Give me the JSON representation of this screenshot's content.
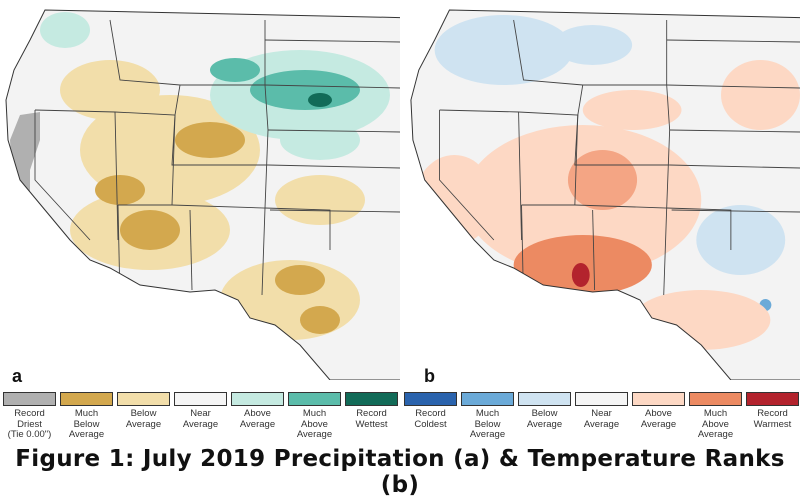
{
  "panel_a": {
    "letter": "a",
    "categories": [
      {
        "label": "Record\nDriest\n(Tie 0.00\")",
        "color": "#b0b0b0"
      },
      {
        "label": "Much\nBelow\nAverage",
        "color": "#d3a84e"
      },
      {
        "label": "Below\nAverage",
        "color": "#f2deaa"
      },
      {
        "label": "Near\nAverage",
        "color": "#f5f5f5"
      },
      {
        "label": "Above\nAverage",
        "color": "#c5eae1"
      },
      {
        "label": "Much\nAbove\nAverage",
        "color": "#5bbcaa"
      },
      {
        "label": "Record\nWettest",
        "color": "#126b58"
      }
    ]
  },
  "panel_b": {
    "letter": "b",
    "categories": [
      {
        "label": "Record\nColdest",
        "color": "#2a63ad"
      },
      {
        "label": "Much\nBelow\nAverage",
        "color": "#6baad8"
      },
      {
        "label": "Below\nAverage",
        "color": "#cfe3f1"
      },
      {
        "label": "Near\nAverage",
        "color": "#f5f5f5"
      },
      {
        "label": "Above\nAverage",
        "color": "#fdd8c4"
      },
      {
        "label": "Much\nAbove\nAverage",
        "color": "#ec8a62"
      },
      {
        "label": "Record\nWarmest",
        "color": "#b3232d"
      }
    ]
  },
  "caption": "Figure 1: July 2019 Precipitation (a) & Temperature Ranks (b)"
}
